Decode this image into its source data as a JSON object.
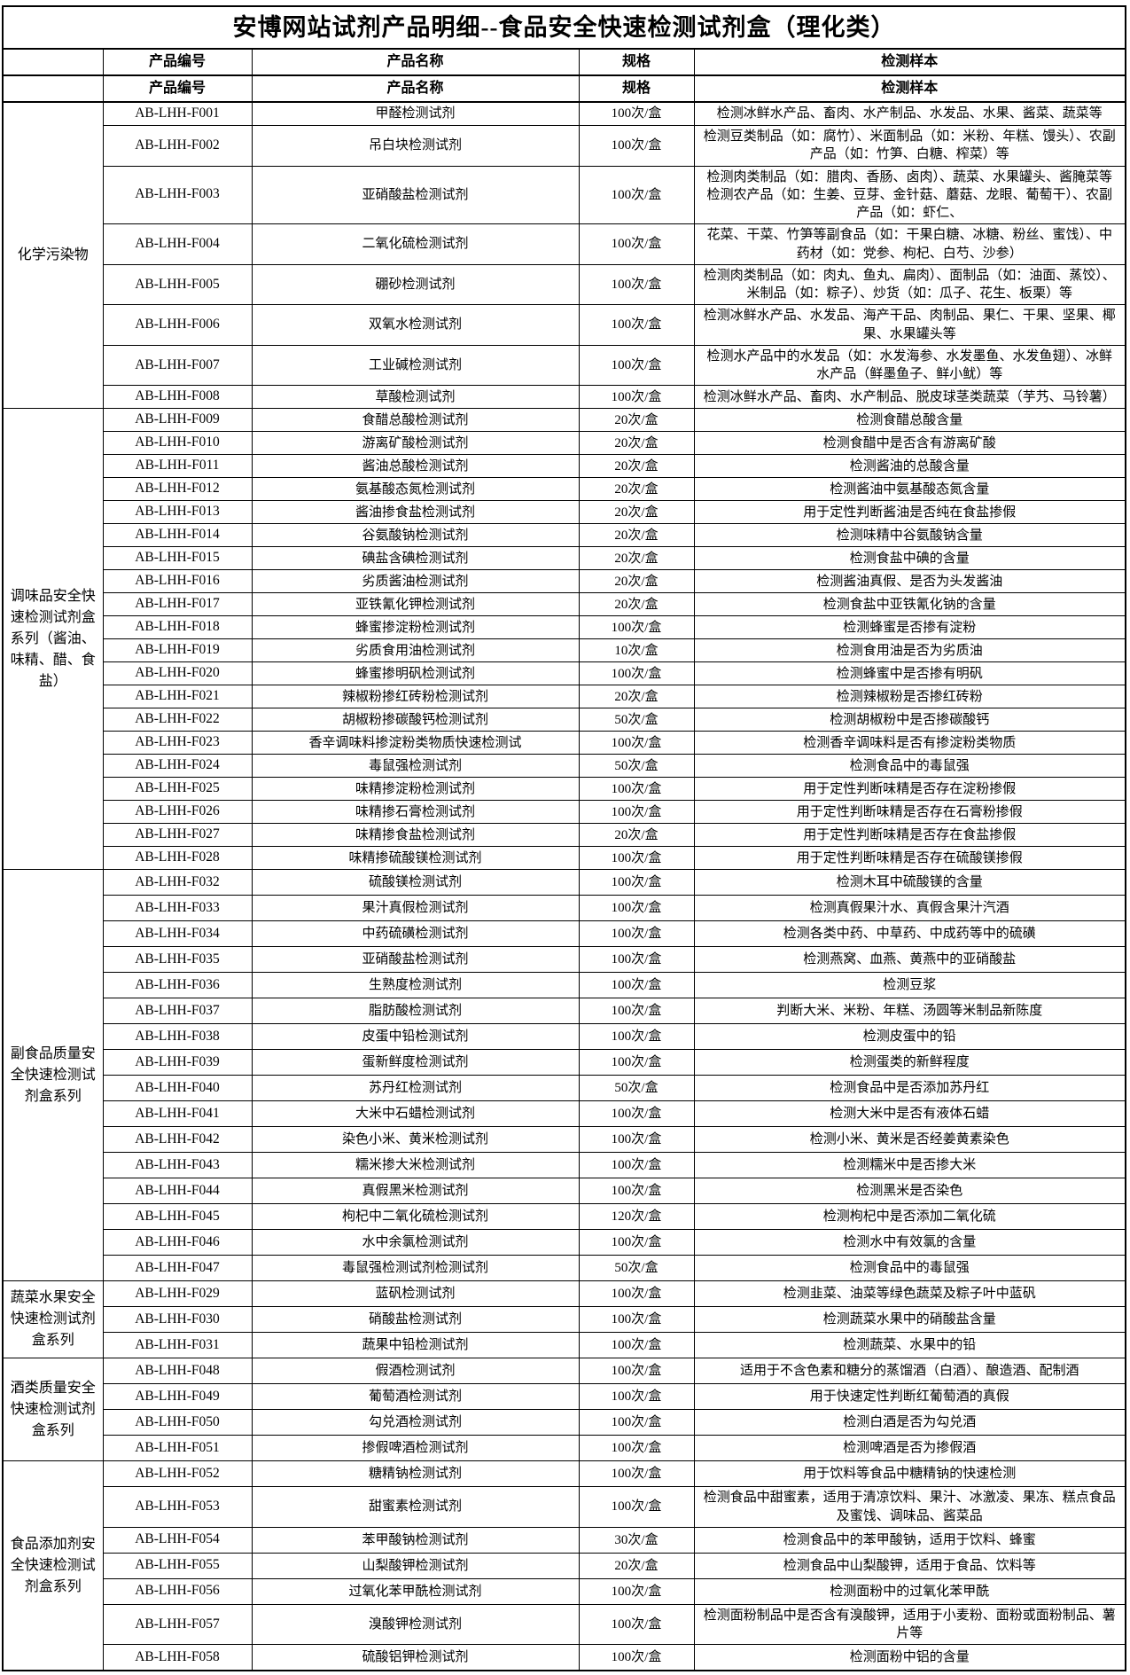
{
  "title": "安博网站试剂产品明细--食品安全快速检测试剂盒（理化类）",
  "table": {
    "headers": [
      "产品编号",
      "产品名称",
      "规格",
      "检测样本"
    ],
    "groups": [
      {
        "category": "化学污染物",
        "density": "dense",
        "rows": [
          [
            "AB-LHH-F001",
            "甲醛检测试剂",
            "100次/盒",
            "检测冰鲜水产品、畜肉、水产制品、水发品、水果、酱菜、蔬菜等"
          ],
          [
            "AB-LHH-F002",
            "吊白块检测试剂",
            "100次/盒",
            "检测豆类制品（如：腐竹）、米面制品（如：米粉、年糕、馒头）、农副产品（如：竹笋、白糖、榨菜）等"
          ],
          [
            "AB-LHH-F003",
            "亚硝酸盐检测试剂",
            "100次/盒",
            "检测肉类制品（如：腊肉、香肠、卤肉）、蔬菜、水果罐头、酱腌菜等检测农产品（如：生姜、豆芽、金针菇、蘑菇、龙眼、葡萄干）、农副产品（如：虾仁、"
          ],
          [
            "AB-LHH-F004",
            "二氧化硫检测试剂",
            "100次/盒",
            "花菜、干菜、竹笋等副食品（如：干果白糖、冰糖、粉丝、蜜饯）、中药材（如：党参、枸杞、白芍、沙参）"
          ],
          [
            "AB-LHH-F005",
            "硼砂检测试剂",
            "100次/盒",
            "检测肉类制品（如：肉丸、鱼丸、扁肉）、面制品（如：油面、蒸饺）、米制品（如：粽子）、炒货（如：瓜子、花生、板栗）等"
          ],
          [
            "AB-LHH-F006",
            "双氧水检测试剂",
            "100次/盒",
            "检测冰鲜水产品、水发品、海产干品、肉制品、果仁、干果、坚果、椰果、水果罐头等"
          ],
          [
            "AB-LHH-F007",
            "工业碱检测试剂",
            "100次/盒",
            "检测水产品中的水发品（如：水发海参、水发墨鱼、水发鱼翅）、冰鲜水产品（鲜墨鱼子、鲜小鱿）等"
          ],
          [
            "AB-LHH-F008",
            "草酸检测试剂",
            "100次/盒",
            "检测冰鲜水产品、畜肉、水产制品、脱皮球茎类蔬菜（芋艿、马铃薯）"
          ]
        ]
      },
      {
        "category": "调味品安全快速检测试剂盒系列（酱油、味精、醋、食盐）",
        "density": "dense",
        "rows": [
          [
            "AB-LHH-F009",
            "食醋总酸检测试剂",
            "20次/盒",
            "检测食醋总酸含量"
          ],
          [
            "AB-LHH-F010",
            "游离矿酸检测试剂",
            "20次/盒",
            "检测食醋中是否含有游离矿酸"
          ],
          [
            "AB-LHH-F011",
            "酱油总酸检测试剂",
            "20次/盒",
            "检测酱油的总酸含量"
          ],
          [
            "AB-LHH-F012",
            "氨基酸态氮检测试剂",
            "20次/盒",
            "检测酱油中氨基酸态氮含量"
          ],
          [
            "AB-LHH-F013",
            "酱油掺食盐检测试剂",
            "20次/盒",
            "用于定性判断酱油是否纯在食盐掺假"
          ],
          [
            "AB-LHH-F014",
            "谷氨酸钠检测试剂",
            "20次/盒",
            "检测味精中谷氨酸钠含量"
          ],
          [
            "AB-LHH-F015",
            "碘盐含碘检测试剂",
            "20次/盒",
            "检测食盐中碘的含量"
          ],
          [
            "AB-LHH-F016",
            "劣质酱油检测试剂",
            "20次/盒",
            "检测酱油真假、是否为头发酱油"
          ],
          [
            "AB-LHH-F017",
            "亚铁氰化钾检测试剂",
            "20次/盒",
            "检测食盐中亚铁氰化钠的含量"
          ],
          [
            "AB-LHH-F018",
            "蜂蜜掺淀粉检测试剂",
            "100次/盒",
            "检测蜂蜜是否掺有淀粉"
          ],
          [
            "AB-LHH-F019",
            "劣质食用油检测试剂",
            "10次/盒",
            "检测食用油是否为劣质油"
          ],
          [
            "AB-LHH-F020",
            "蜂蜜掺明矾检测试剂",
            "100次/盒",
            "检测蜂蜜中是否掺有明矾"
          ],
          [
            "AB-LHH-F021",
            "辣椒粉掺红砖粉检测试剂",
            "20次/盒",
            "检测辣椒粉是否掺红砖粉"
          ],
          [
            "AB-LHH-F022",
            "胡椒粉掺碳酸钙检测试剂",
            "50次/盒",
            "检测胡椒粉中是否掺碳酸钙"
          ],
          [
            "AB-LHH-F023",
            "香辛调味料掺淀粉类物质快速检测试",
            "100次/盒",
            "检测香辛调味料是否有掺淀粉类物质"
          ],
          [
            "AB-LHH-F024",
            "毒鼠强检测试剂",
            "50次/盒",
            "检测食品中的毒鼠强"
          ],
          [
            "AB-LHH-F025",
            "味精掺淀粉检测试剂",
            "100次/盒",
            "用于定性判断味精是否存在淀粉掺假"
          ],
          [
            "AB-LHH-F026",
            "味精掺石膏检测试剂",
            "100次/盒",
            "用于定性判断味精是否存在石膏粉掺假"
          ],
          [
            "AB-LHH-F027",
            "味精掺食盐检测试剂",
            "20次/盒",
            "用于定性判断味精是否存在食盐掺假"
          ],
          [
            "AB-LHH-F028",
            "味精掺硫酸镁检测试剂",
            "100次/盒",
            "用于定性判断味精是否存在硫酸镁掺假"
          ]
        ]
      },
      {
        "category": "副食品质量安全快速检测试剂盒系列",
        "density": "roomy",
        "repeat_header": true,
        "rows": [
          [
            "AB-LHH-F032",
            "硫酸镁检测试剂",
            "100次/盒",
            "检测木耳中硫酸镁的含量"
          ],
          [
            "AB-LHH-F033",
            "果汁真假检测试剂",
            "100次/盒",
            "检测真假果汁水、真假含果汁汽酒"
          ],
          [
            "AB-LHH-F034",
            "中药硫磺检测试剂",
            "100次/盒",
            "检测各类中药、中草药、中成药等中的硫磺"
          ],
          [
            "AB-LHH-F035",
            "亚硝酸盐检测试剂",
            "100次/盒",
            "检测燕窝、血燕、黄燕中的亚硝酸盐"
          ],
          [
            "AB-LHH-F036",
            "生熟度检测试剂",
            "100次/盒",
            "检测豆浆"
          ],
          [
            "AB-LHH-F037",
            "脂肪酸检测试剂",
            "100次/盒",
            "判断大米、米粉、年糕、汤圆等米制品新陈度"
          ],
          [
            "AB-LHH-F038",
            "皮蛋中铅检测试剂",
            "100次/盒",
            "检测皮蛋中的铅"
          ],
          [
            "AB-LHH-F039",
            "蛋新鲜度检测试剂",
            "100次/盒",
            "检测蛋类的新鲜程度"
          ],
          [
            "AB-LHH-F040",
            "苏丹红检测试剂",
            "50次/盒",
            "检测食品中是否添加苏丹红"
          ],
          [
            "AB-LHH-F041",
            "大米中石蜡检测试剂",
            "100次/盒",
            "检测大米中是否有液体石蜡"
          ],
          [
            "AB-LHH-F042",
            "染色小米、黄米检测试剂",
            "100次/盒",
            "检测小米、黄米是否经姜黄素染色"
          ],
          [
            "AB-LHH-F043",
            "糯米掺大米检测试剂",
            "100次/盒",
            "检测糯米中是否掺大米"
          ],
          [
            "AB-LHH-F044",
            "真假黑米检测试剂",
            "100次/盒",
            "检测黑米是否染色"
          ],
          [
            "AB-LHH-F045",
            "枸杞中二氧化硫检测试剂",
            "120次/盒",
            "检测枸杞中是否添加二氧化硫"
          ],
          [
            "AB-LHH-F046",
            "水中余氯检测试剂",
            "100次/盒",
            "检测水中有效氯的含量"
          ],
          [
            "AB-LHH-F047",
            "毒鼠强检测试剂检测试剂",
            "50次/盒",
            "检测食品中的毒鼠强"
          ]
        ]
      },
      {
        "category": "蔬菜水果安全快速检测试剂盒系列",
        "density": "roomy",
        "rows": [
          [
            "AB-LHH-F029",
            "蓝矾检测试剂",
            "100次/盒",
            "检测韭菜、油菜等绿色蔬菜及粽子叶中蓝矾"
          ],
          [
            "AB-LHH-F030",
            "硝酸盐检测试剂",
            "100次/盒",
            "检测蔬菜水果中的硝酸盐含量"
          ],
          [
            "AB-LHH-F031",
            "蔬果中铅检测试剂",
            "100次/盒",
            "检测蔬菜、水果中的铅"
          ]
        ]
      },
      {
        "category": "酒类质量安全快速检测试剂盒系列",
        "density": "roomy",
        "rows": [
          [
            "AB-LHH-F048",
            "假酒检测试剂",
            "100次/盒",
            "适用于不含色素和糖分的蒸馏酒（白酒）、酿造酒、配制酒"
          ],
          [
            "AB-LHH-F049",
            "葡萄酒检测试剂",
            "100次/盒",
            "用于快速定性判断红葡萄酒的真假"
          ],
          [
            "AB-LHH-F050",
            "勾兑酒检测试剂",
            "100次/盒",
            "检测白酒是否为勾兑酒"
          ],
          [
            "AB-LHH-F051",
            "掺假啤酒检测试剂",
            "100次/盒",
            "检测啤酒是否为掺假酒"
          ]
        ]
      },
      {
        "category": "食品添加剂安全快速检测试剂盒系列",
        "density": "roomy",
        "rows": [
          [
            "AB-LHH-F052",
            "糖精钠检测试剂",
            "100次/盒",
            "用于饮料等食品中糖精钠的快速检测"
          ],
          [
            "AB-LHH-F053",
            "甜蜜素检测试剂",
            "100次/盒",
            "检测食品中甜蜜素，适用于清凉饮料、果汁、冰激凌、果冻、糕点食品及蜜饯、调味品、酱菜品"
          ],
          [
            "AB-LHH-F054",
            "苯甲酸钠检测试剂",
            "30次/盒",
            "检测食品中的苯甲酸钠，适用于饮料、蜂蜜"
          ],
          [
            "AB-LHH-F055",
            "山梨酸钾检测试剂",
            "20次/盒",
            "检测食品中山梨酸钾，适用于食品、饮料等"
          ],
          [
            "AB-LHH-F056",
            "过氧化苯甲酰检测试剂",
            "100次/盒",
            "检测面粉中的过氧化苯甲酰"
          ],
          [
            "AB-LHH-F057",
            "溴酸钾检测试剂",
            "100次/盒",
            "检测面粉制品中是否含有溴酸钾，适用于小麦粉、面粉或面粉制品、薯片等"
          ],
          [
            "AB-LHH-F058",
            "硫酸铝钾检测试剂",
            "100次/盒",
            "检测面粉中铝的含量"
          ]
        ]
      }
    ]
  }
}
